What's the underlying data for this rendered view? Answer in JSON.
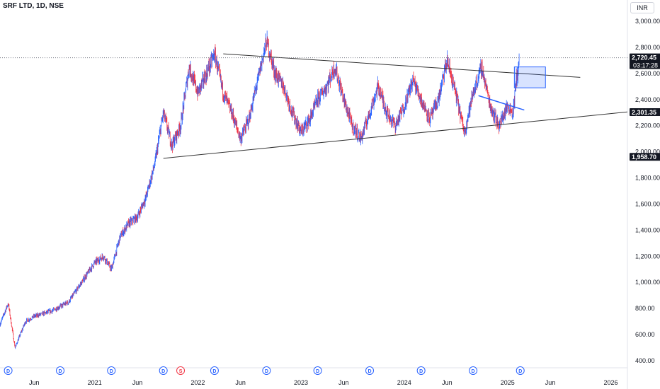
{
  "header": {
    "title": "SRF LTD, 1D, NSE",
    "currency": "INR"
  },
  "chart_data": {
    "type": "candlestick",
    "title": "SRF LTD, 1D, NSE",
    "ylim": [
      400,
      3000
    ],
    "y_ticks": [
      "3,000.00",
      "2,800.00",
      "2,600.00",
      "2,400.00",
      "2,200.00",
      "2,000.00",
      "1,800.00",
      "1,600.00",
      "1,400.00",
      "1,200.00",
      "1,000.00",
      "800.00",
      "600.00",
      "400.00"
    ],
    "x_labels": [
      "Jun",
      "2021",
      "Jun",
      "2022",
      "Jun",
      "2023",
      "Jun",
      "2024",
      "Jun",
      "2025",
      "Jun",
      "2026"
    ],
    "x_range": [
      "2020-02-01",
      "2026-03-01"
    ],
    "price_path": [
      [
        "2020-02-01",
        680
      ],
      [
        "2020-03-01",
        840
      ],
      [
        "2020-03-25",
        500
      ],
      [
        "2020-05-01",
        700
      ],
      [
        "2020-06-01",
        740
      ],
      [
        "2020-08-01",
        780
      ],
      [
        "2020-10-01",
        850
      ],
      [
        "2020-12-01",
        1050
      ],
      [
        "2021-01-01",
        1150
      ],
      [
        "2021-02-01",
        1200
      ],
      [
        "2021-03-01",
        1100
      ],
      [
        "2021-04-01",
        1350
      ],
      [
        "2021-05-01",
        1450
      ],
      [
        "2021-06-01",
        1500
      ],
      [
        "2021-07-01",
        1650
      ],
      [
        "2021-08-01",
        1900
      ],
      [
        "2021-09-01",
        2300
      ],
      [
        "2021-10-01",
        2050
      ],
      [
        "2021-11-01",
        2200
      ],
      [
        "2021-12-01",
        2650
      ],
      [
        "2022-01-01",
        2450
      ],
      [
        "2022-02-01",
        2600
      ],
      [
        "2022-03-01",
        2750
      ],
      [
        "2022-04-01",
        2450
      ],
      [
        "2022-05-01",
        2300
      ],
      [
        "2022-06-01",
        2100
      ],
      [
        "2022-07-01",
        2250
      ],
      [
        "2022-08-01",
        2550
      ],
      [
        "2022-09-01",
        2850
      ],
      [
        "2022-10-01",
        2600
      ],
      [
        "2022-11-01",
        2500
      ],
      [
        "2022-12-01",
        2300
      ],
      [
        "2023-01-01",
        2150
      ],
      [
        "2023-02-01",
        2250
      ],
      [
        "2023-03-01",
        2400
      ],
      [
        "2023-04-01",
        2500
      ],
      [
        "2023-05-01",
        2650
      ],
      [
        "2023-06-01",
        2400
      ],
      [
        "2023-07-01",
        2200
      ],
      [
        "2023-08-01",
        2100
      ],
      [
        "2023-09-01",
        2300
      ],
      [
        "2023-10-01",
        2500
      ],
      [
        "2023-11-01",
        2300
      ],
      [
        "2023-12-01",
        2200
      ],
      [
        "2024-01-01",
        2350
      ],
      [
        "2024-02-01",
        2550
      ],
      [
        "2024-03-01",
        2400
      ],
      [
        "2024-04-01",
        2250
      ],
      [
        "2024-05-01",
        2400
      ],
      [
        "2024-06-01",
        2700
      ],
      [
        "2024-07-01",
        2450
      ],
      [
        "2024-08-01",
        2150
      ],
      [
        "2024-09-01",
        2450
      ],
      [
        "2024-10-01",
        2650
      ],
      [
        "2024-11-01",
        2350
      ],
      [
        "2024-12-01",
        2200
      ],
      [
        "2025-01-01",
        2350
      ],
      [
        "2025-01-20",
        2300
      ],
      [
        "2025-02-01",
        2550
      ],
      [
        "2025-02-12",
        2720
      ]
    ],
    "lines": [
      {
        "name": "upper-trendline",
        "from": [
          "2022-04-01",
          2750
        ],
        "to": [
          "2025-09-15",
          2570
        ],
        "color": "#333333"
      },
      {
        "name": "lower-trendline",
        "from": [
          "2021-09-01",
          1950
        ],
        "to": [
          "2026-03-01",
          2305
        ],
        "color": "#333333"
      },
      {
        "name": "short-trendline",
        "from": [
          "2024-09-20",
          2430
        ],
        "to": [
          "2025-03-01",
          2320
        ],
        "color": "#2962ff"
      }
    ],
    "box": {
      "from": [
        "2025-01-25",
        2650
      ],
      "to": [
        "2025-05-15",
        2490
      ],
      "color": "#2962ff"
    },
    "price_line": {
      "value": 2720.45,
      "label": "2,720.45",
      "countdown": "03:17:28",
      "color": "#131722"
    },
    "price_labels": [
      {
        "value": 2301.35,
        "label": "2,301.35",
        "color": "#131722"
      },
      {
        "value": 1958.7,
        "label": "1,958.70",
        "color": "#131722"
      }
    ],
    "events": [
      {
        "date": "2020-03-01",
        "letter": "D"
      },
      {
        "date": "2020-09-01",
        "letter": "D"
      },
      {
        "date": "2021-03-01",
        "letter": "D"
      },
      {
        "date": "2021-09-01",
        "letter": "D"
      },
      {
        "date": "2021-11-01",
        "letter": "S"
      },
      {
        "date": "2022-03-01",
        "letter": "D"
      },
      {
        "date": "2022-09-01",
        "letter": "D"
      },
      {
        "date": "2023-03-01",
        "letter": "D"
      },
      {
        "date": "2023-09-01",
        "letter": "D"
      },
      {
        "date": "2024-03-01",
        "letter": "D"
      },
      {
        "date": "2024-09-01",
        "letter": "D"
      },
      {
        "date": "2025-02-15",
        "letter": "D"
      }
    ],
    "grid": false
  }
}
